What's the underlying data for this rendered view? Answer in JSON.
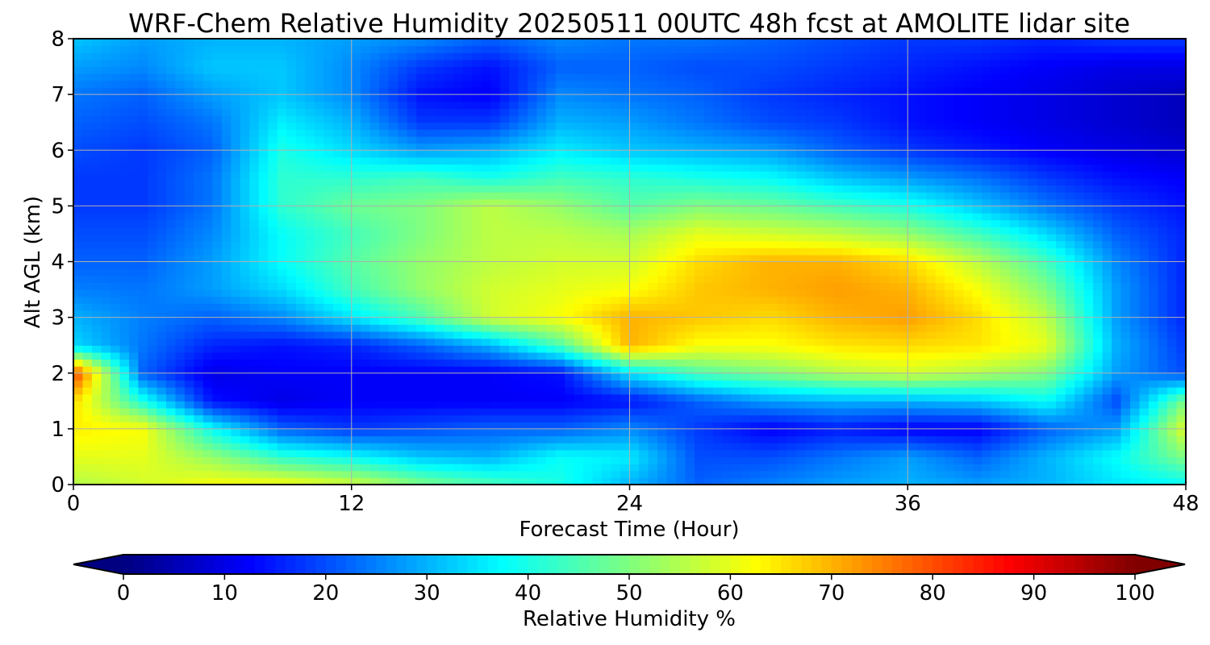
{
  "chart_data": {
    "type": "heatmap",
    "title": "WRF-Chem Relative Humidity 20250511 00UTC 48h fcst at AMOLITE lidar site",
    "xlabel": "Forecast Time (Hour)",
    "ylabel": "Alt AGL (km)",
    "xlim": [
      0,
      48
    ],
    "ylim": [
      0,
      8
    ],
    "xticks": [
      "0",
      "12",
      "24",
      "36",
      "48"
    ],
    "yticks": [
      "0",
      "1",
      "2",
      "3",
      "4",
      "5",
      "6",
      "7",
      "8"
    ],
    "grid": true,
    "colormap": "jet",
    "colorbar": {
      "label": "Relative Humidity %",
      "range": [
        0,
        100
      ],
      "ticks": [
        "0",
        "10",
        "20",
        "30",
        "40",
        "50",
        "60",
        "70",
        "80",
        "90",
        "100"
      ],
      "extend": "both"
    },
    "z_units": "%",
    "x": [
      0,
      3,
      6,
      9,
      12,
      15,
      18,
      21,
      24,
      27,
      30,
      33,
      36,
      39,
      42,
      45,
      48
    ],
    "y": [
      0,
      0.5,
      1,
      1.5,
      2,
      2.5,
      3,
      3.5,
      4,
      4.5,
      5,
      5.5,
      6,
      6.5,
      7,
      7.5,
      8
    ],
    "z": [
      [
        55,
        58,
        62,
        62,
        58,
        50,
        45,
        40,
        30,
        22,
        25,
        28,
        30,
        28,
        30,
        35,
        38
      ],
      [
        60,
        60,
        52,
        42,
        38,
        32,
        30,
        38,
        36,
        20,
        20,
        24,
        28,
        22,
        30,
        38,
        50
      ],
      [
        64,
        62,
        38,
        22,
        18,
        20,
        22,
        22,
        26,
        18,
        12,
        15,
        12,
        12,
        22,
        28,
        60
      ],
      [
        66,
        40,
        14,
        10,
        12,
        12,
        12,
        12,
        14,
        22,
        28,
        30,
        30,
        32,
        38,
        20,
        50
      ],
      [
        82,
        22,
        10,
        12,
        12,
        12,
        12,
        14,
        35,
        45,
        50,
        55,
        58,
        55,
        50,
        28,
        20
      ],
      [
        34,
        24,
        16,
        14,
        16,
        22,
        30,
        45,
        70,
        62,
        62,
        65,
        66,
        65,
        60,
        30,
        18
      ],
      [
        30,
        25,
        22,
        26,
        35,
        45,
        58,
        62,
        70,
        68,
        66,
        70,
        72,
        66,
        56,
        28,
        16
      ],
      [
        25,
        24,
        28,
        34,
        44,
        52,
        58,
        60,
        62,
        68,
        70,
        72,
        70,
        62,
        50,
        28,
        16
      ],
      [
        22,
        22,
        28,
        38,
        46,
        52,
        56,
        58,
        58,
        66,
        70,
        70,
        66,
        56,
        44,
        26,
        16
      ],
      [
        20,
        20,
        26,
        38,
        44,
        50,
        56,
        56,
        54,
        60,
        58,
        56,
        52,
        44,
        34,
        22,
        16
      ],
      [
        18,
        18,
        24,
        42,
        48,
        50,
        56,
        52,
        46,
        50,
        48,
        44,
        40,
        32,
        24,
        18,
        14
      ],
      [
        18,
        18,
        24,
        42,
        42,
        44,
        40,
        44,
        42,
        40,
        38,
        32,
        28,
        24,
        18,
        14,
        12
      ],
      [
        20,
        18,
        22,
        40,
        34,
        28,
        30,
        36,
        32,
        30,
        28,
        22,
        18,
        15,
        12,
        10,
        8
      ],
      [
        22,
        20,
        24,
        36,
        30,
        18,
        18,
        30,
        28,
        24,
        20,
        18,
        14,
        12,
        10,
        8,
        6
      ],
      [
        24,
        22,
        28,
        32,
        26,
        14,
        12,
        26,
        24,
        22,
        18,
        16,
        14,
        12,
        10,
        8,
        6
      ],
      [
        28,
        26,
        32,
        32,
        26,
        18,
        14,
        22,
        22,
        20,
        20,
        18,
        16,
        14,
        12,
        10,
        10
      ],
      [
        32,
        28,
        30,
        30,
        28,
        26,
        22,
        26,
        24,
        24,
        22,
        20,
        18,
        18,
        16,
        18,
        18
      ]
    ]
  }
}
